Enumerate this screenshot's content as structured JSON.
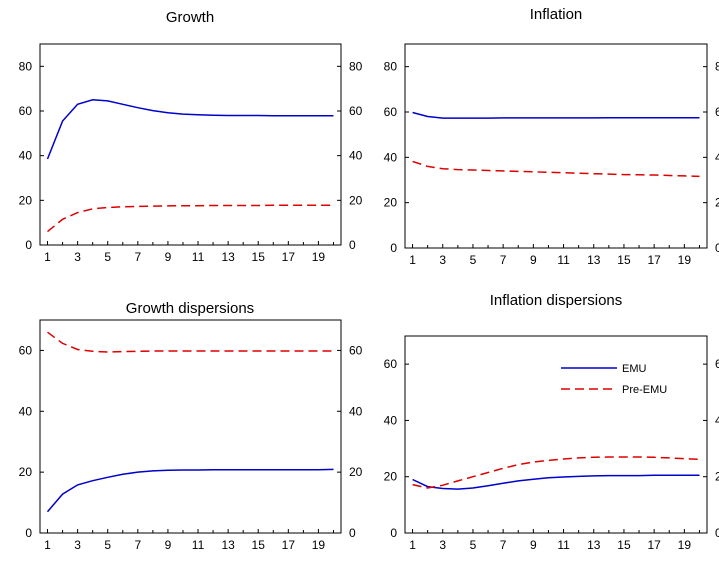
{
  "colors": {
    "emu": "#0000cc",
    "pre_emu": "#dd0000",
    "axis": "#000000"
  },
  "chart_data": [
    {
      "type": "line",
      "title": "Growth",
      "x": [
        1,
        2,
        3,
        4,
        5,
        6,
        7,
        8,
        9,
        10,
        11,
        12,
        13,
        14,
        15,
        16,
        17,
        18,
        19,
        20
      ],
      "xticks": [
        1,
        3,
        5,
        7,
        9,
        11,
        13,
        15,
        17,
        19
      ],
      "xticks_minor": [
        2,
        4,
        6,
        8,
        10,
        12,
        14,
        16,
        18,
        20
      ],
      "ylim": [
        0,
        90
      ],
      "yticks": [
        0,
        20,
        40,
        60,
        80
      ],
      "grid": false,
      "series": [
        {
          "key": "emu",
          "style": "solid",
          "values": [
            38.5,
            55.5,
            63,
            65,
            64.5,
            63,
            61.5,
            60.2,
            59.2,
            58.6,
            58.3,
            58.1,
            58,
            58,
            58,
            57.9,
            57.9,
            57.9,
            57.9,
            57.9
          ]
        },
        {
          "key": "pre_emu",
          "style": "dashed",
          "values": [
            6,
            11.5,
            14.5,
            16.2,
            16.8,
            17.1,
            17.3,
            17.4,
            17.5,
            17.6,
            17.6,
            17.7,
            17.7,
            17.7,
            17.7,
            17.8,
            17.8,
            17.8,
            17.8,
            17.8
          ]
        }
      ]
    },
    {
      "type": "line",
      "title": "Inflation",
      "x": [
        1,
        2,
        3,
        4,
        5,
        6,
        7,
        8,
        9,
        10,
        11,
        12,
        13,
        14,
        15,
        16,
        17,
        18,
        19,
        20
      ],
      "xticks": [
        1,
        3,
        5,
        7,
        9,
        11,
        13,
        15,
        17,
        19
      ],
      "xticks_minor": [
        2,
        4,
        6,
        8,
        10,
        12,
        14,
        16,
        18,
        20
      ],
      "ylim": [
        0,
        90
      ],
      "yticks": [
        0,
        20,
        40,
        60,
        80
      ],
      "grid": false,
      "series": [
        {
          "key": "emu",
          "style": "solid",
          "values": [
            59.8,
            58,
            57.3,
            57.3,
            57.3,
            57.3,
            57.4,
            57.4,
            57.4,
            57.4,
            57.4,
            57.4,
            57.4,
            57.5,
            57.5,
            57.5,
            57.5,
            57.5,
            57.5,
            57.5
          ]
        },
        {
          "key": "pre_emu",
          "style": "dashed",
          "values": [
            38.2,
            36,
            35,
            34.6,
            34.4,
            34.2,
            34,
            33.8,
            33.6,
            33.4,
            33.2,
            33,
            32.8,
            32.6,
            32.4,
            32.3,
            32.2,
            32,
            31.8,
            31.6
          ]
        }
      ]
    },
    {
      "type": "line",
      "title": "Growth dispersions",
      "x": [
        1,
        2,
        3,
        4,
        5,
        6,
        7,
        8,
        9,
        10,
        11,
        12,
        13,
        14,
        15,
        16,
        17,
        18,
        19,
        20
      ],
      "xticks": [
        1,
        3,
        5,
        7,
        9,
        11,
        13,
        15,
        17,
        19
      ],
      "xticks_minor": [
        2,
        4,
        6,
        8,
        10,
        12,
        14,
        16,
        18,
        20
      ],
      "ylim": [
        0,
        70
      ],
      "yticks": [
        0,
        20,
        40,
        60
      ],
      "grid": false,
      "series": [
        {
          "key": "emu",
          "style": "solid",
          "values": [
            7,
            12.8,
            15.8,
            17.2,
            18.3,
            19.3,
            20,
            20.4,
            20.6,
            20.7,
            20.7,
            20.8,
            20.8,
            20.8,
            20.8,
            20.8,
            20.8,
            20.8,
            20.8,
            20.9
          ]
        },
        {
          "key": "pre_emu",
          "style": "dashed",
          "values": [
            66,
            62.3,
            60.3,
            59.7,
            59.5,
            59.6,
            59.7,
            59.8,
            59.8,
            59.8,
            59.8,
            59.8,
            59.8,
            59.8,
            59.8,
            59.8,
            59.8,
            59.8,
            59.8,
            59.8
          ]
        }
      ]
    },
    {
      "type": "line",
      "title": "Inflation dispersions",
      "x": [
        1,
        2,
        3,
        4,
        5,
        6,
        7,
        8,
        9,
        10,
        11,
        12,
        13,
        14,
        15,
        16,
        17,
        18,
        19,
        20
      ],
      "xticks": [
        1,
        3,
        5,
        7,
        9,
        11,
        13,
        15,
        17,
        19
      ],
      "xticks_minor": [
        2,
        4,
        6,
        8,
        10,
        12,
        14,
        16,
        18,
        20
      ],
      "ylim": [
        0,
        70
      ],
      "yticks": [
        0,
        20,
        40,
        60
      ],
      "grid": false,
      "legend": {
        "position": "top-right",
        "entries": [
          {
            "key": "emu",
            "style": "solid",
            "label": "EMU"
          },
          {
            "key": "pre_emu",
            "style": "dashed",
            "label": "Pre-EMU"
          }
        ]
      },
      "series": [
        {
          "key": "emu",
          "style": "solid",
          "values": [
            19,
            16.5,
            15.8,
            15.6,
            16,
            16.8,
            17.7,
            18.5,
            19.1,
            19.6,
            19.9,
            20.1,
            20.3,
            20.4,
            20.4,
            20.4,
            20.5,
            20.5,
            20.5,
            20.5
          ]
        },
        {
          "key": "pre_emu",
          "style": "dashed",
          "values": [
            17.2,
            16,
            17,
            18.5,
            20,
            21.5,
            23,
            24.3,
            25.2,
            25.8,
            26.3,
            26.7,
            26.9,
            27,
            27,
            27,
            26.9,
            26.7,
            26.4,
            26.2
          ]
        }
      ]
    }
  ]
}
